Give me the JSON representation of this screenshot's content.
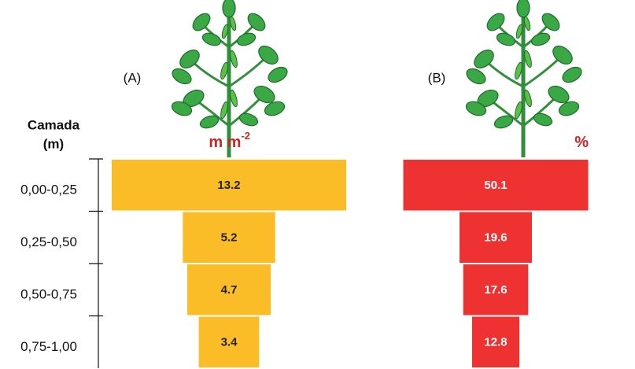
{
  "chart_data": {
    "type": "bar",
    "y_title": [
      "Camada",
      "(m)"
    ],
    "categories": [
      "0,00-0,25",
      "0,25-0,50",
      "0,50-0,75",
      "0,75-1,00"
    ],
    "series": [
      {
        "name": "(A)",
        "unit": "m m",
        "unit_sup": "-2",
        "color": "#fbbd27",
        "unit_color": "#c62828",
        "label_color": "#222222",
        "values": [
          13.2,
          5.2,
          4.7,
          3.4
        ]
      },
      {
        "name": "(B)",
        "unit": "%",
        "color": "#ee3131",
        "unit_color": "#c62828",
        "label_color": "#ffffff",
        "values": [
          50.1,
          19.6,
          17.6,
          12.8
        ]
      }
    ]
  }
}
